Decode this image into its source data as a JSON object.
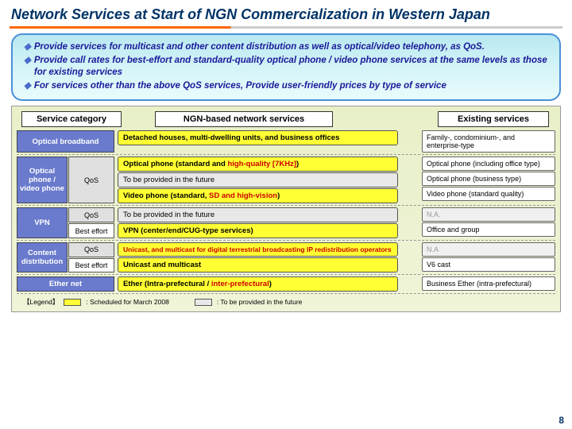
{
  "title": "Network Services at Start of NGN Commercialization in Western Japan",
  "bullets": [
    "Provide services for multicast and other content distribution as well as optical/video telephony, as QoS.",
    "Provide call rates for best-effort and standard-quality optical phone / video phone services at the same levels as those for existing services",
    "For services other than the above QoS services, Provide user-friendly prices by type of service"
  ],
  "headers": {
    "cat": "Service category",
    "ngn": "NGN-based network services",
    "ex": "Existing services"
  },
  "rows": [
    {
      "cat": "Optical broadband",
      "svcs": [
        {
          "t": "Detached houses, multi-dwelling units, and business offices",
          "c": "y"
        }
      ],
      "ex": [
        {
          "t": "Family-, condominium-, and enterprise-type"
        }
      ]
    },
    {
      "cat": "Optical phone / video phone",
      "sub": [
        "QoS"
      ],
      "subq": [
        true
      ],
      "svcs": [
        {
          "t": "Optical phone (standard and ",
          "r": "high-quality [7KHz]",
          "t2": ")",
          "c": "y"
        },
        {
          "t": "To be provided in the future",
          "c": "g"
        },
        {
          "t": "Video phone (standard, ",
          "r": "SD and high-vision",
          "t2": ")",
          "c": "y"
        }
      ],
      "ex": [
        {
          "t": "Optical phone (including office type)"
        },
        {
          "t": "Optical phone (business type)"
        },
        {
          "t": "Video phone (standard quality)"
        }
      ]
    },
    {
      "cat": "VPN",
      "sub": [
        "QoS",
        "Best effort"
      ],
      "subq": [
        true,
        false
      ],
      "svcs": [
        {
          "t": "To be provided in the future",
          "c": "g"
        },
        {
          "t": "VPN (center/end/CUG-type services)",
          "c": "y"
        }
      ],
      "ex": [
        {
          "t": "N.A.",
          "na": true
        },
        {
          "t": "Office and group"
        }
      ]
    },
    {
      "cat": "Content distribution",
      "sub": [
        "QoS",
        "Best effort"
      ],
      "subq": [
        true,
        false
      ],
      "svcs": [
        {
          "t": "",
          "r": "Unicast, and multicast for digital terrestrial broadcasting IP redistribution operators",
          "c": "y",
          "small": true
        },
        {
          "t": "Unicast and multicast",
          "c": "y"
        }
      ],
      "ex": [
        {
          "t": "N.A",
          "na": true
        },
        {
          "t": "V6 cast"
        }
      ]
    },
    {
      "cat": "Ether net",
      "svcs": [
        {
          "t": "Ether (Intra-prefectural / ",
          "r": "inter-prefectural",
          "t2": ")",
          "c": "y"
        }
      ],
      "ex": [
        {
          "t": "Business Ether (intra-prefectural)"
        }
      ]
    }
  ],
  "legend": {
    "label": "【Legend】",
    "y": ": Scheduled for March 2008",
    "g": ": To be provided in the future"
  },
  "page": "8"
}
